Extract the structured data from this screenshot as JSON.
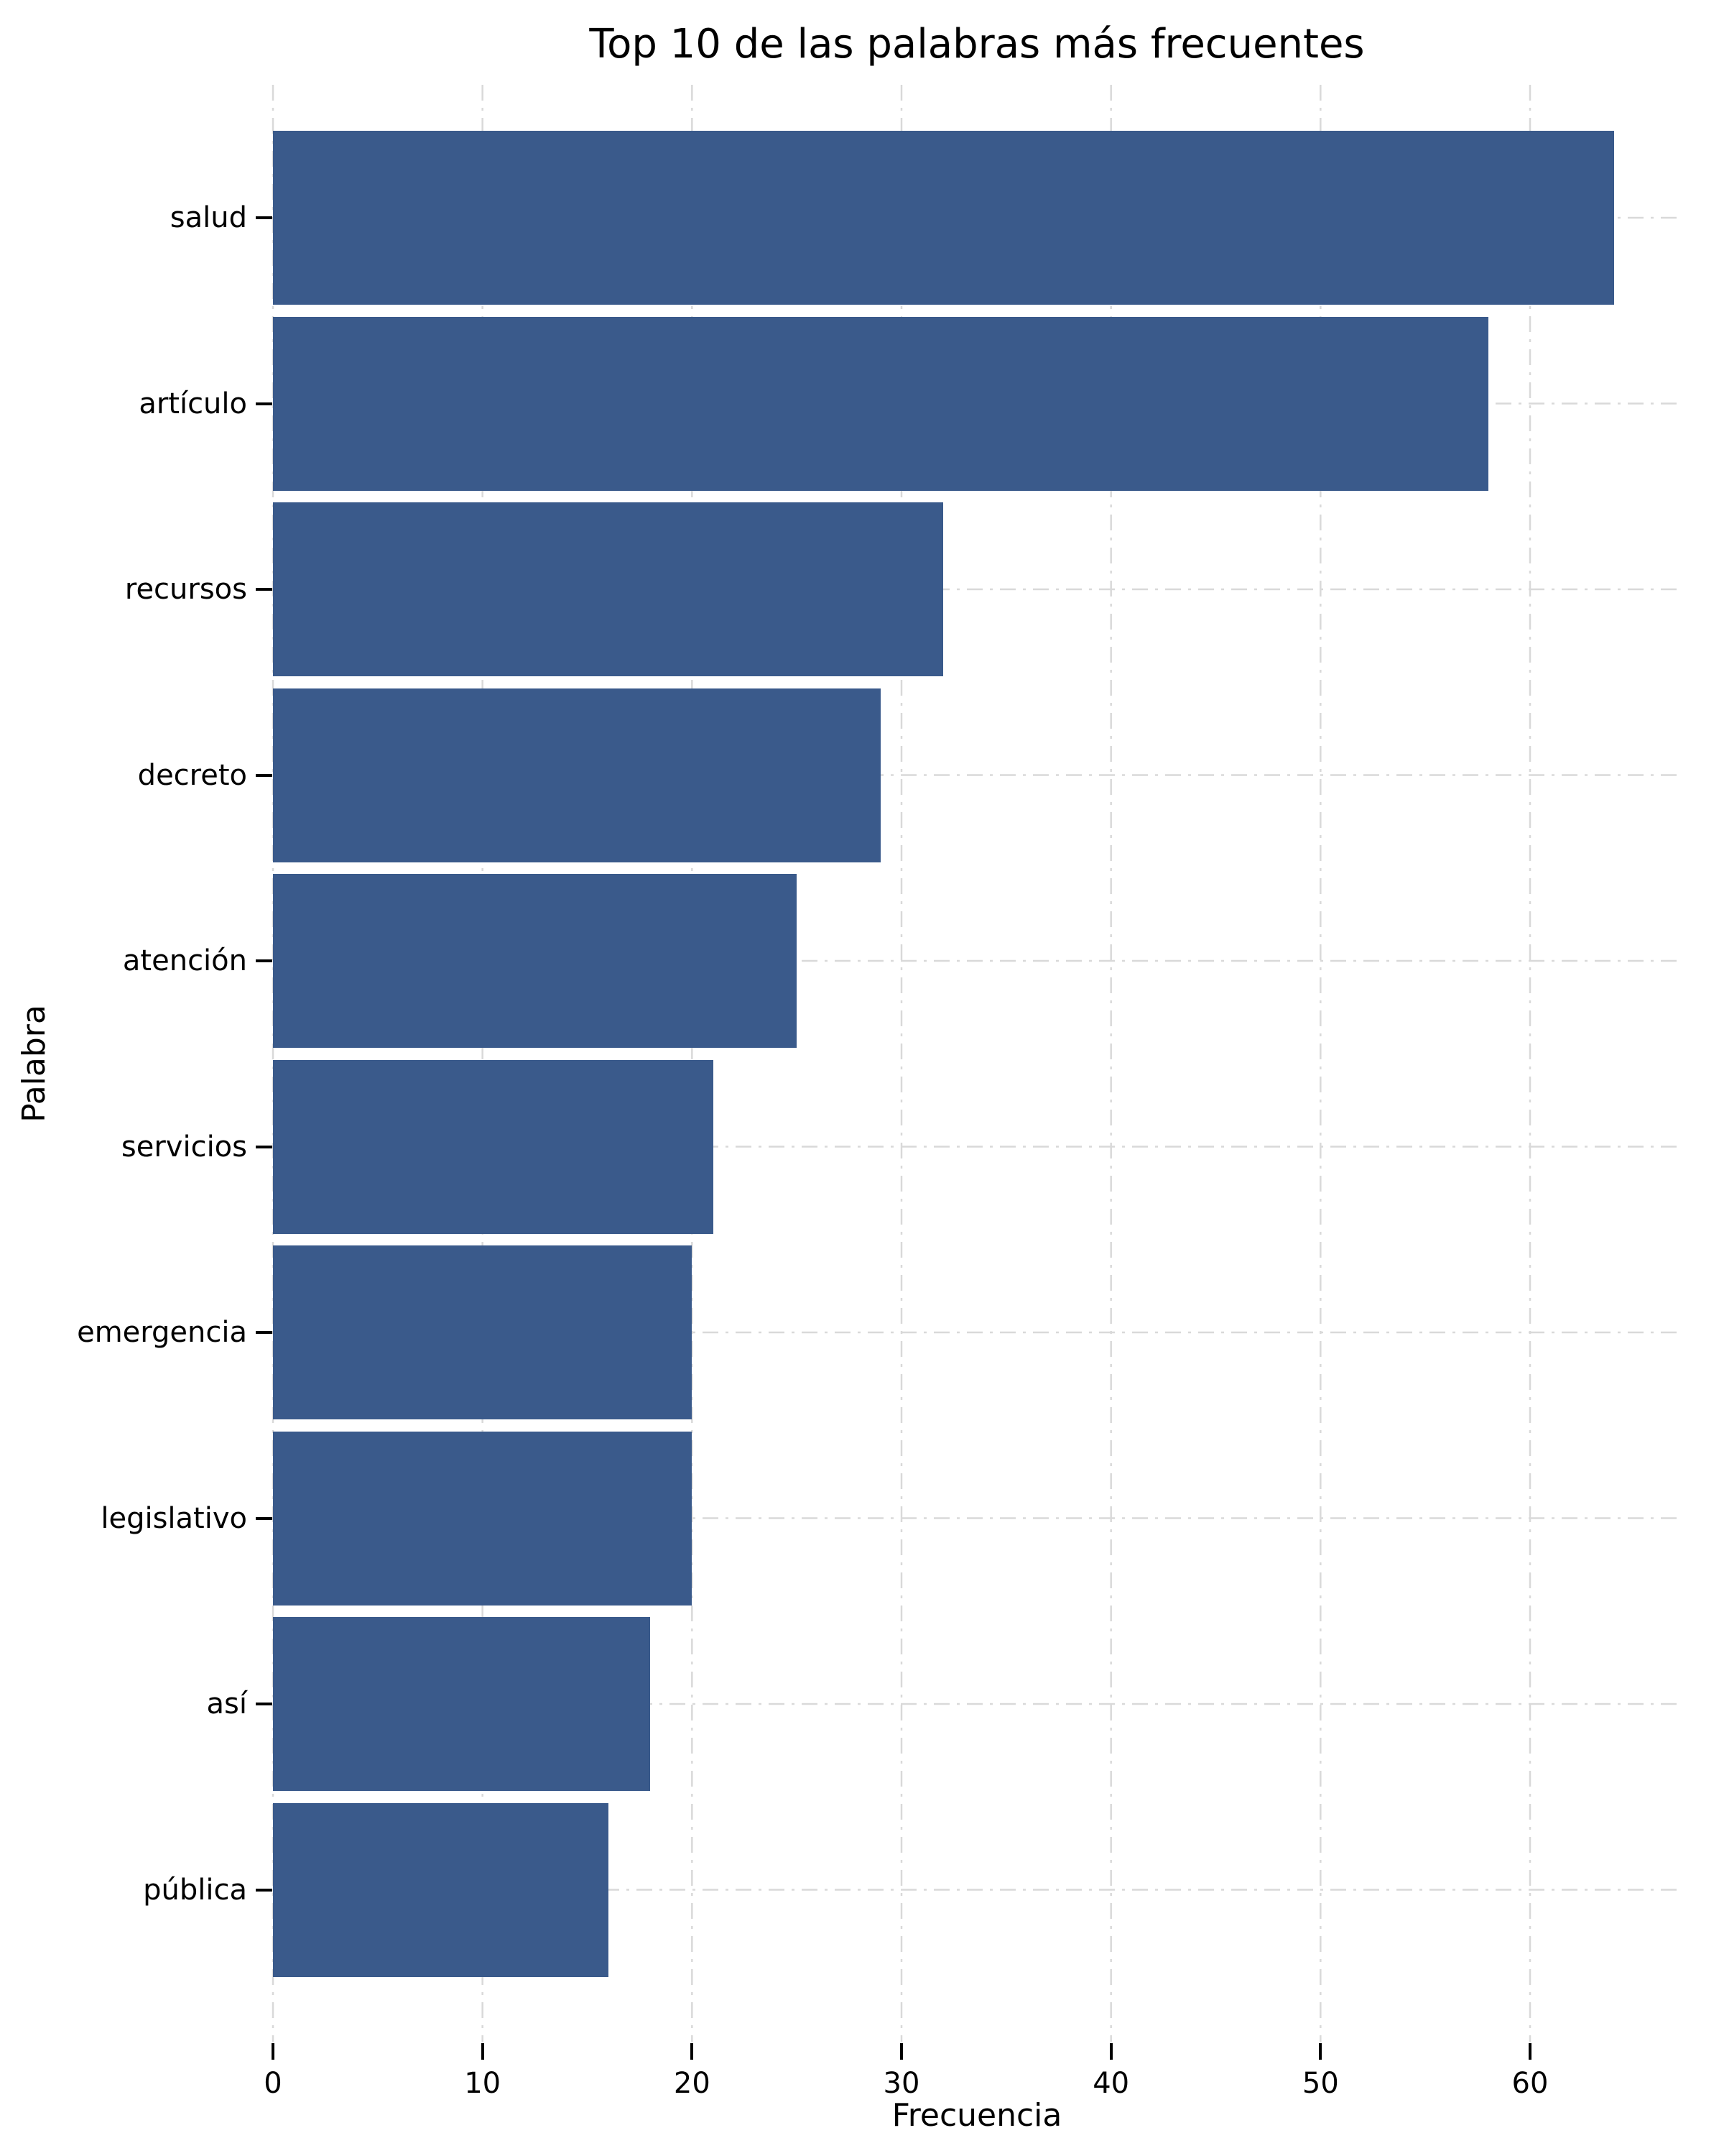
{
  "chart_data": {
    "type": "bar",
    "orientation": "horizontal",
    "title": "Top 10 de las palabras más frecuentes",
    "xlabel": "Frecuencia",
    "ylabel": "Palabra",
    "categories": [
      "salud",
      "artículo",
      "recursos",
      "decreto",
      "atención",
      "servicios",
      "emergencia",
      "legislativo",
      "así",
      "pública"
    ],
    "values": [
      64,
      58,
      32,
      29,
      25,
      21,
      20,
      20,
      18,
      16
    ],
    "xticks": [
      0,
      10,
      20,
      30,
      40,
      50,
      60
    ],
    "xlim": [
      0,
      67.2
    ],
    "grid": true,
    "grid_linestyle": "dash-dot",
    "legend": null,
    "colors": {
      "bar": "#3A5A8B",
      "grid": "#D9D9D9",
      "tick": "#000000",
      "text": "#000000",
      "background": "#FFFFFF"
    }
  }
}
